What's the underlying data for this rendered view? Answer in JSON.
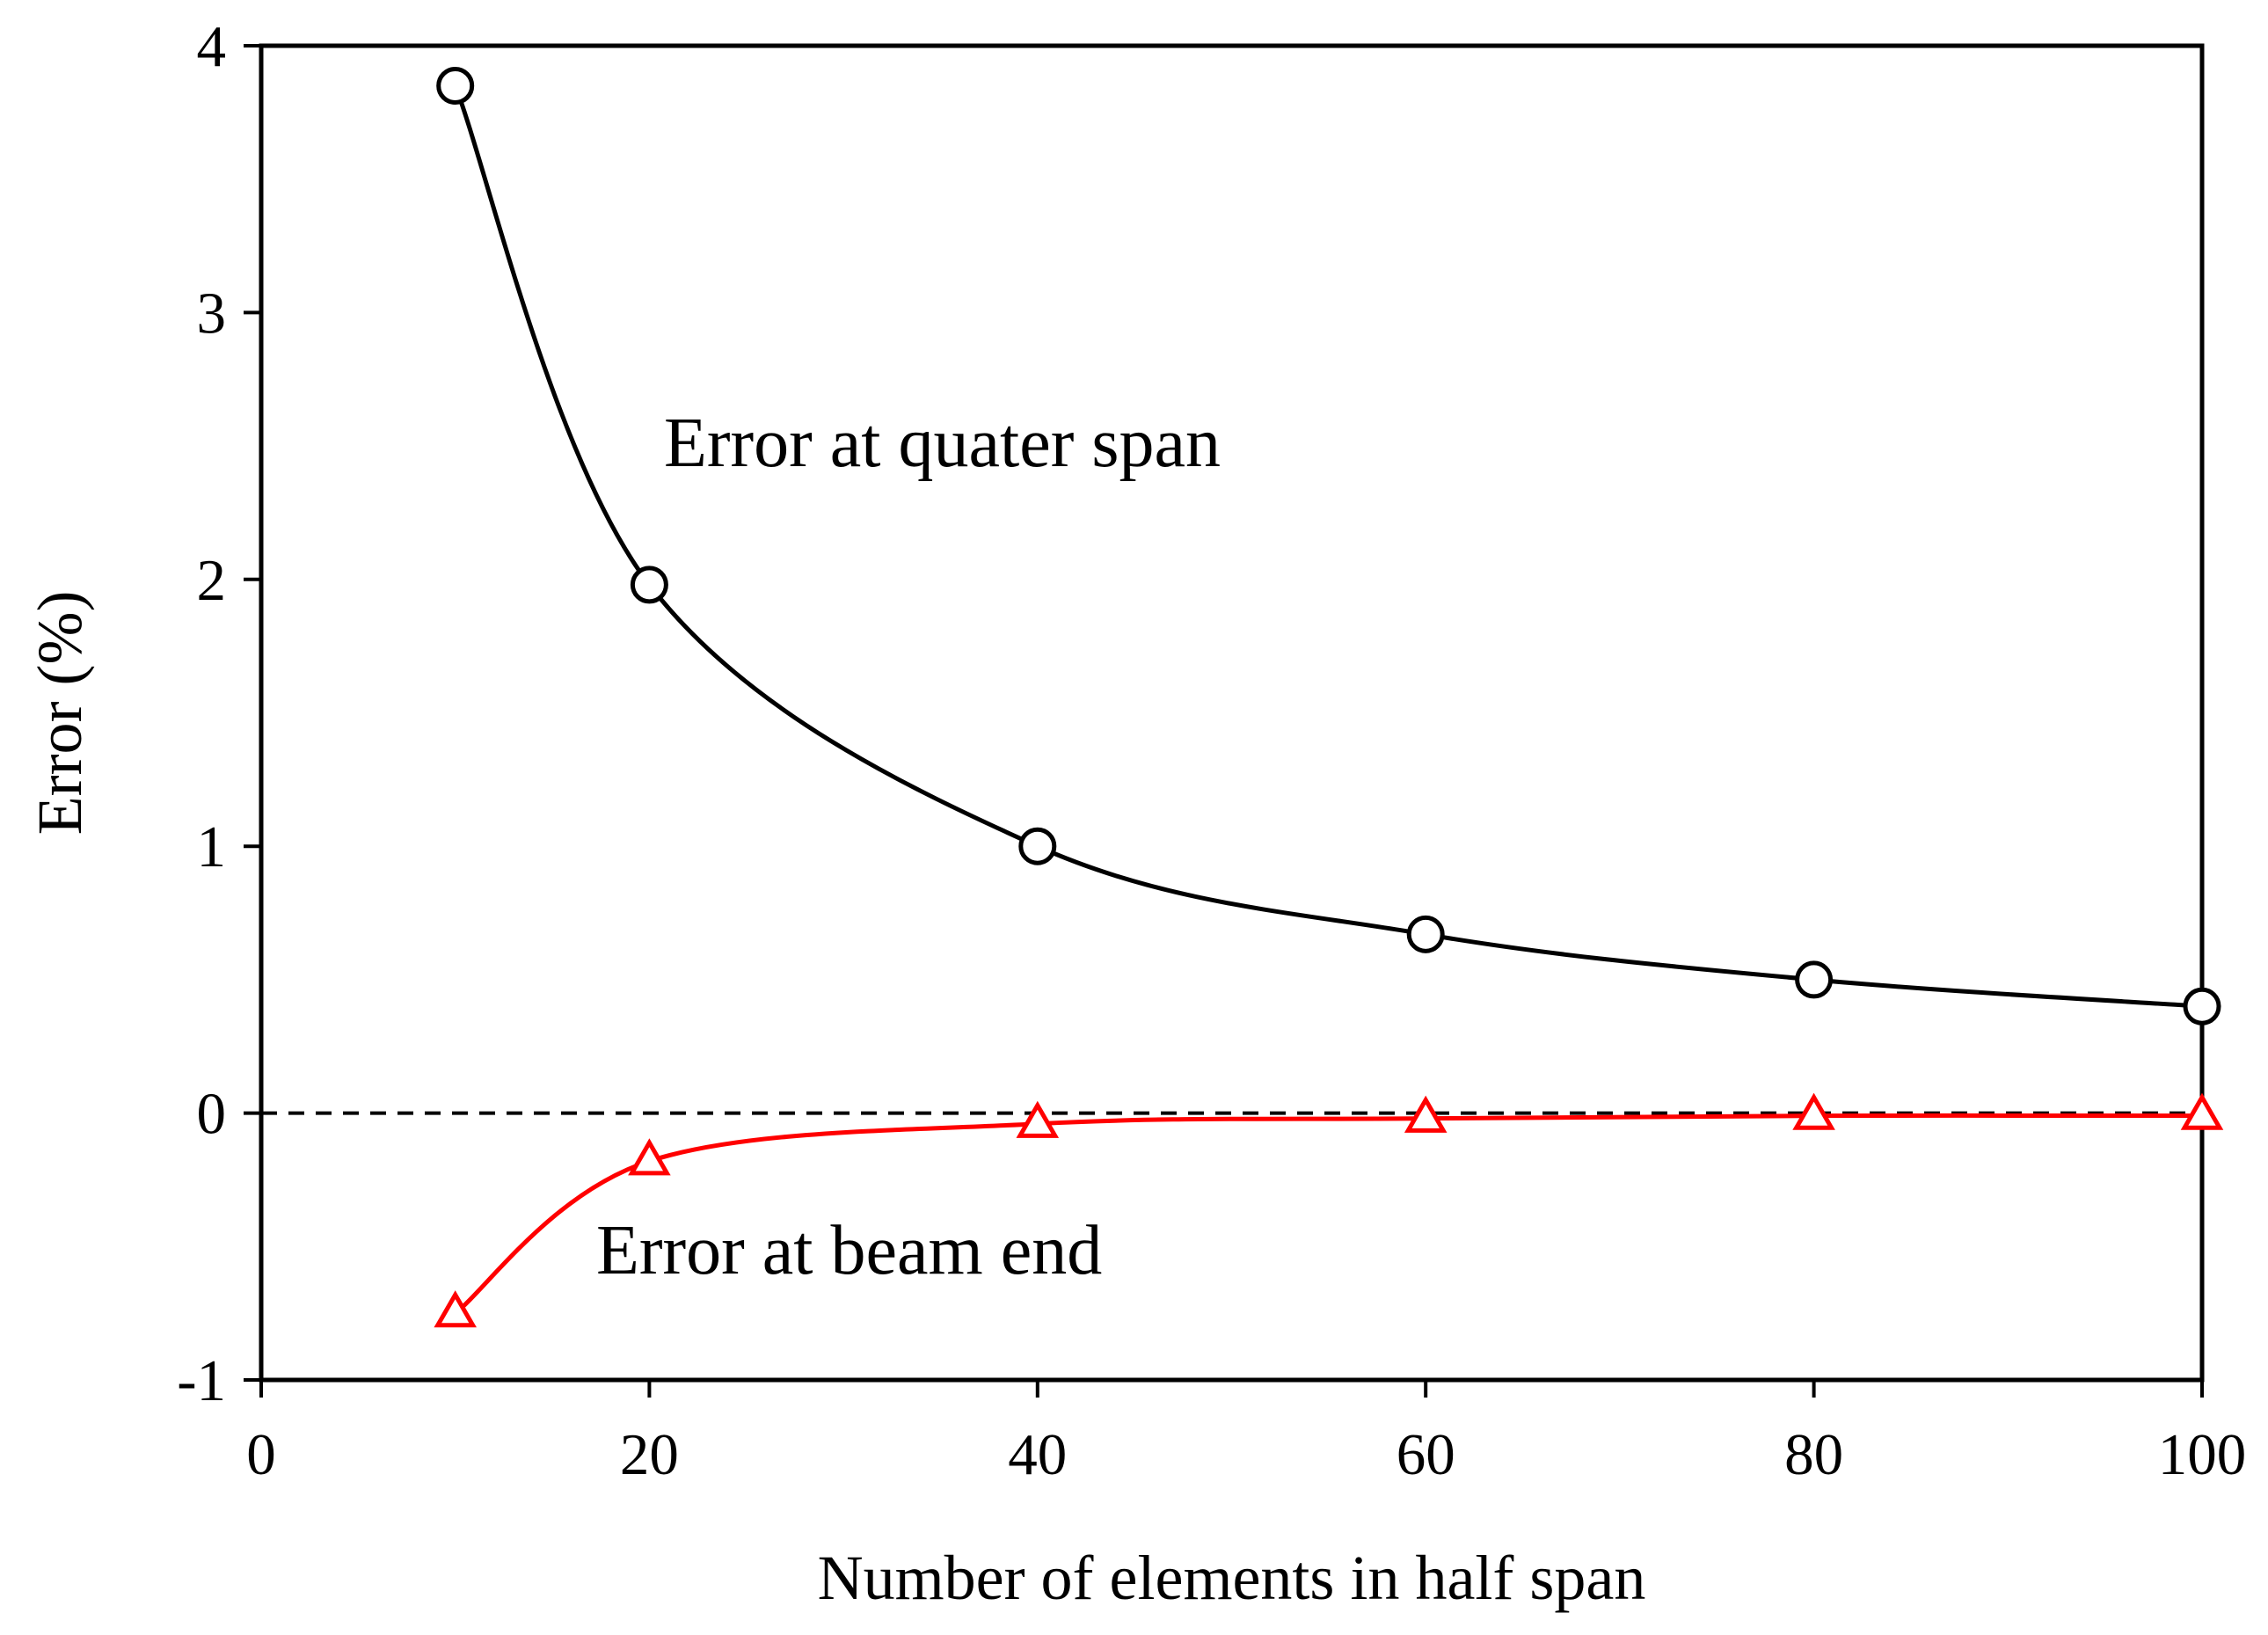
{
  "chart_data": {
    "type": "line",
    "title": "",
    "xlabel": "Number of elements in half span",
    "ylabel": "Error (%)",
    "xlim": [
      0,
      100
    ],
    "ylim": [
      -1,
      4
    ],
    "xticks": [
      0,
      20,
      40,
      60,
      80,
      100
    ],
    "yticks": [
      -1,
      0,
      1,
      2,
      3,
      4
    ],
    "xtick_labels": [
      "0",
      "20",
      "40",
      "60",
      "80",
      "100"
    ],
    "ytick_labels": [
      "-1",
      "0",
      "1",
      "2",
      "3",
      "4"
    ],
    "grid": false,
    "legend": "none",
    "reference_line": {
      "y": 0,
      "style": "dashed",
      "color": "#000000"
    },
    "series": [
      {
        "label": "Error at quater span",
        "marker": "circle",
        "color": "#000000",
        "x": [
          10,
          20,
          40,
          60,
          80,
          100
        ],
        "y": [
          3.85,
          1.98,
          1.0,
          0.67,
          0.5,
          0.4
        ]
      },
      {
        "label": "Error at beam end",
        "marker": "triangle",
        "color": "#ff0000",
        "x": [
          10,
          20,
          40,
          60,
          80,
          100
        ],
        "y": [
          -0.75,
          -0.18,
          -0.04,
          -0.02,
          -0.01,
          -0.01
        ]
      }
    ]
  }
}
